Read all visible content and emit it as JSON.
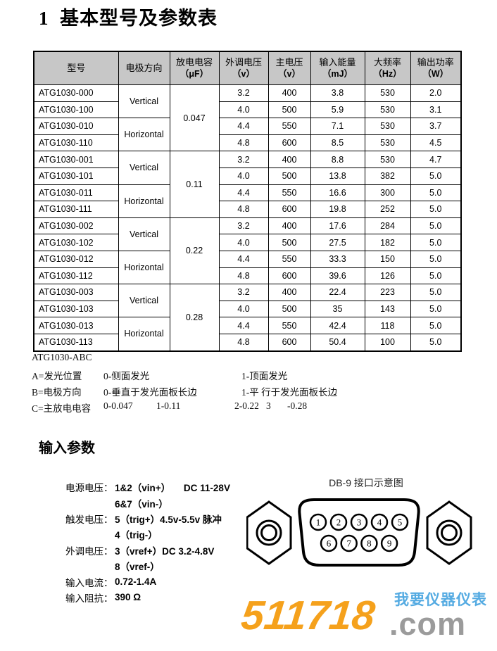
{
  "title": "1  基本型号及参数表",
  "table": {
    "headers": [
      {
        "line1": "型号",
        "line2": ""
      },
      {
        "line1": "电极方向",
        "line2": ""
      },
      {
        "line1": "放电电容",
        "line2": "（μF）"
      },
      {
        "line1": "外调电压",
        "line2": "（v）"
      },
      {
        "line1": "主电压",
        "line2": "（v）"
      },
      {
        "line1": "输入能量",
        "line2": "（mJ）"
      },
      {
        "line1": "大频率",
        "line2": "（Hz）"
      },
      {
        "line1": "输出功率",
        "line2": "（W）"
      }
    ],
    "groups": [
      {
        "capacitance": "0.047",
        "subgroups": [
          {
            "direction": "Vertical",
            "rows": [
              {
                "model": "ATG1030-000",
                "mod_v": "3.2",
                "main_v": "400",
                "energy": "3.8",
                "freq": "530",
                "power": "2.0"
              },
              {
                "model": "ATG1030-100",
                "mod_v": "4.0",
                "main_v": "500",
                "energy": "5.9",
                "freq": "530",
                "power": "3.1"
              }
            ]
          },
          {
            "direction": "Horizontal",
            "rows": [
              {
                "model": "ATG1030-010",
                "mod_v": "4.4",
                "main_v": "550",
                "energy": "7.1",
                "freq": "530",
                "power": "3.7"
              },
              {
                "model": "ATG1030-110",
                "mod_v": "4.8",
                "main_v": "600",
                "energy": "8.5",
                "freq": "530",
                "power": "4.5"
              }
            ]
          }
        ]
      },
      {
        "capacitance": "0.11",
        "subgroups": [
          {
            "direction": "Vertical",
            "rows": [
              {
                "model": "ATG1030-001",
                "mod_v": "3.2",
                "main_v": "400",
                "energy": "8.8",
                "freq": "530",
                "power": "4.7"
              },
              {
                "model": "ATG1030-101",
                "mod_v": "4.0",
                "main_v": "500",
                "energy": "13.8",
                "freq": "382",
                "power": "5.0"
              }
            ]
          },
          {
            "direction": "Horizontal",
            "rows": [
              {
                "model": "ATG1030-011",
                "mod_v": "4.4",
                "main_v": "550",
                "energy": "16.6",
                "freq": "300",
                "power": "5.0"
              },
              {
                "model": "ATG1030-111",
                "mod_v": "4.8",
                "main_v": "600",
                "energy": "19.8",
                "freq": "252",
                "power": "5.0"
              }
            ]
          }
        ]
      },
      {
        "capacitance": "0.22",
        "subgroups": [
          {
            "direction": "Vertical",
            "rows": [
              {
                "model": "ATG1030-002",
                "mod_v": "3.2",
                "main_v": "400",
                "energy": "17.6",
                "freq": "284",
                "power": "5.0"
              },
              {
                "model": "ATG1030-102",
                "mod_v": "4.0",
                "main_v": "500",
                "energy": "27.5",
                "freq": "182",
                "power": "5.0"
              }
            ]
          },
          {
            "direction": "Horizontal",
            "rows": [
              {
                "model": "ATG1030-012",
                "mod_v": "4.4",
                "main_v": "550",
                "energy": "33.3",
                "freq": "150",
                "power": "5.0"
              },
              {
                "model": "ATG1030-112",
                "mod_v": "4.8",
                "main_v": "600",
                "energy": "39.6",
                "freq": "126",
                "power": "5.0"
              }
            ]
          }
        ]
      },
      {
        "capacitance": "0.28",
        "subgroups": [
          {
            "direction": "Vertical",
            "rows": [
              {
                "model": "ATG1030-003",
                "mod_v": "3.2",
                "main_v": "400",
                "energy": "22.4",
                "freq": "223",
                "power": "5.0"
              },
              {
                "model": "ATG1030-103",
                "mod_v": "4.0",
                "main_v": "500",
                "energy": "35",
                "freq": "143",
                "power": "5.0"
              }
            ]
          },
          {
            "direction": "Horizontal",
            "rows": [
              {
                "model": "ATG1030-013",
                "mod_v": "4.4",
                "main_v": "550",
                "energy": "42.4",
                "freq": "118",
                "power": "5.0"
              },
              {
                "model": "ATG1030-113",
                "mod_v": "4.8",
                "main_v": "600",
                "energy": "50.4",
                "freq": "100",
                "power": "5.0"
              }
            ]
          }
        ]
      }
    ]
  },
  "model_code": {
    "title": "ATG1030-ABC",
    "row_a": {
      "label": "A=发光位置",
      "opt0": "0-侧面发光",
      "opt1": "1-顶面发光"
    },
    "row_b": {
      "label": "B=电极方向",
      "opt0": "0-垂直于发光面板长边",
      "opt1": "1-平 行于发光面板长边"
    },
    "row_c": {
      "label": "C=主放电电容",
      "opt0": "0-0.047",
      "opt1": "1-0.11",
      "opt2": "2-0.22",
      "opt3": "3",
      "opt3_value": "-0.28"
    }
  },
  "input_params": {
    "heading": "输入参数",
    "rows": [
      {
        "label": "电源电压：",
        "value": "1&2（vin+）     DC 11-28V"
      },
      {
        "label": "",
        "value": "6&7（vin-）"
      },
      {
        "label": "触发电压：",
        "value": "5（trig+）4.5v-5.5v 脉冲"
      },
      {
        "label": "",
        "value": "4（trig-）"
      },
      {
        "label": "外调电压：",
        "value": "3（vref+）DC 3.2-4.8V"
      },
      {
        "label": "",
        "value": "8（vref-）"
      },
      {
        "label": "输入电流：",
        "value": "0.72-1.4A"
      },
      {
        "label": "输入阻抗：",
        "value": "390 Ω"
      }
    ]
  },
  "db9": {
    "title": "DB-9 接口示意图",
    "pins_top": [
      "1",
      "2",
      "3",
      "4",
      "5"
    ],
    "pins_bottom": [
      "6",
      "7",
      "8",
      "9"
    ]
  },
  "logo": {
    "number": "511718",
    "domain_suffix": ".com",
    "slogan": "我要仪器仪表",
    "colors": {
      "orange": "#F5A11C",
      "gray": "#9B9B9B",
      "blue": "#55ABE2"
    }
  }
}
